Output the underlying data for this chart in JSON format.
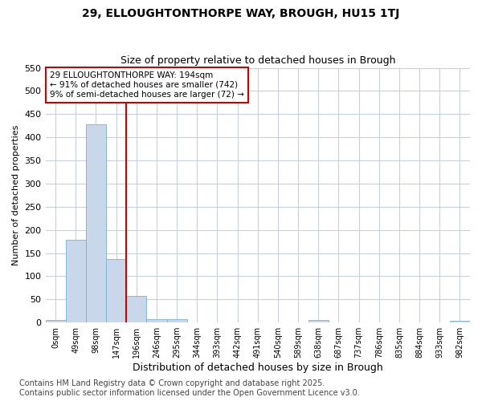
{
  "title_line1": "29, ELLOUGHTONTHORPE WAY, BROUGH, HU15 1TJ",
  "title_line2": "Size of property relative to detached houses in Brough",
  "xlabel": "Distribution of detached houses by size in Brough",
  "ylabel": "Number of detached properties",
  "bar_color": "#c8d8ea",
  "bar_edge_color": "#7aafd4",
  "categories": [
    "0sqm",
    "49sqm",
    "98sqm",
    "147sqm",
    "196sqm",
    "246sqm",
    "295sqm",
    "344sqm",
    "393sqm",
    "442sqm",
    "491sqm",
    "540sqm",
    "589sqm",
    "638sqm",
    "687sqm",
    "737sqm",
    "786sqm",
    "835sqm",
    "884sqm",
    "933sqm",
    "982sqm"
  ],
  "values": [
    5,
    178,
    428,
    137,
    58,
    8,
    8,
    0,
    0,
    0,
    0,
    0,
    0,
    5,
    0,
    0,
    0,
    0,
    0,
    0,
    4
  ],
  "ylim": [
    0,
    550
  ],
  "yticks": [
    0,
    50,
    100,
    150,
    200,
    250,
    300,
    350,
    400,
    450,
    500,
    550
  ],
  "red_line_index": 3.5,
  "annotation_text": "29 ELLOUGHTONTHORPE WAY: 194sqm\n← 91% of detached houses are smaller (742)\n9% of semi-detached houses are larger (72) →",
  "footer": "Contains HM Land Registry data © Crown copyright and database right 2025.\nContains public sector information licensed under the Open Government Licence v3.0.",
  "background_color": "#ffffff",
  "plot_background_color": "#ffffff",
  "grid_color": "#c8d0e0",
  "title_fontsize": 10,
  "subtitle_fontsize": 9,
  "footer_fontsize": 7,
  "annotation_box_color": "#ffffff",
  "annotation_box_edge_color": "#cc0000"
}
